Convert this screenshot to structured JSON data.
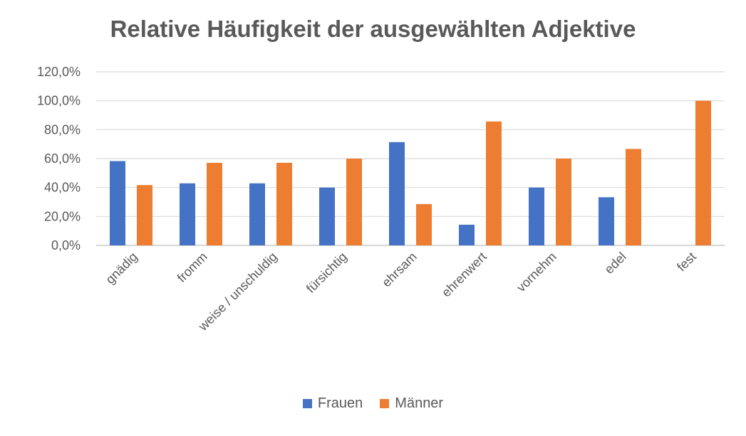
{
  "chart_data": {
    "type": "bar",
    "title": "Relative Häufigkeit der ausgewählten Adjektive",
    "categories": [
      "gnädig",
      "fromm",
      "weise / unschuldig",
      "fürsichtig",
      "ehrsam",
      "ehrenwert",
      "vornehm",
      "edel",
      "fest"
    ],
    "series": [
      {
        "name": "Frauen",
        "color": "#4472C4",
        "values": [
          58.3,
          42.9,
          42.9,
          40.0,
          71.4,
          14.3,
          40.0,
          33.3,
          0.0
        ]
      },
      {
        "name": "Männer",
        "color": "#ED7D31",
        "values": [
          41.7,
          57.1,
          57.1,
          60.0,
          28.6,
          85.7,
          60.0,
          66.7,
          100.0
        ]
      }
    ],
    "ylim": [
      0,
      120
    ],
    "yticks": [
      "0,0%",
      "20,0%",
      "40,0%",
      "60,0%",
      "80,0%",
      "100,0%",
      "120,0%"
    ],
    "ytick_values": [
      0,
      20,
      40,
      60,
      80,
      100,
      120
    ],
    "xlabel": "",
    "ylabel": "",
    "grid": true,
    "legend_position": "bottom"
  }
}
